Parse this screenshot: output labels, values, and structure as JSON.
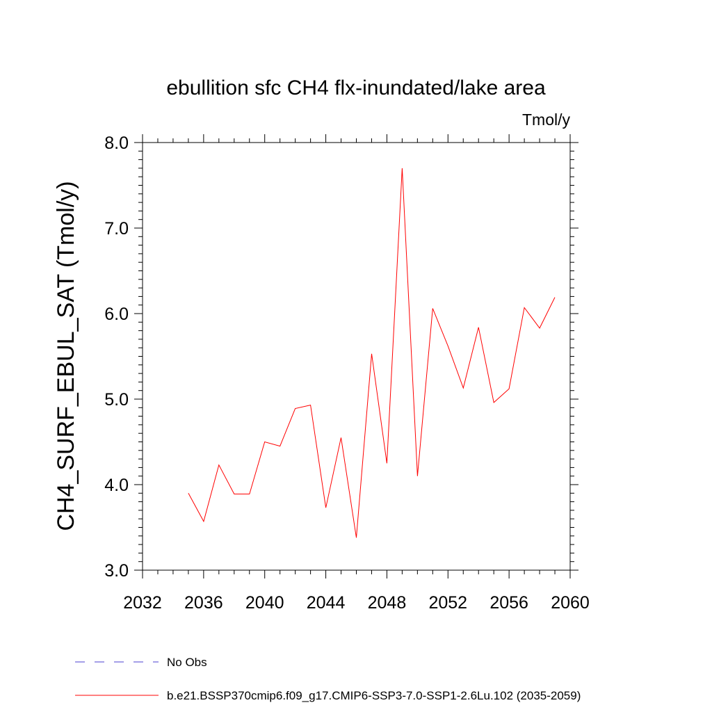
{
  "chart_data": {
    "type": "line",
    "title": "ebullition sfc CH4 flx-inundated/lake area",
    "units": "Tmol/y",
    "ylabel": "CH4_SURF_EBUL_SAT  (Tmol/y)",
    "xlabel": "",
    "xlim": [
      2032,
      2060
    ],
    "ylim": [
      3.0,
      8.0
    ],
    "x_ticks": [
      "2032",
      "2036",
      "2040",
      "2044",
      "2048",
      "2052",
      "2056",
      "2060"
    ],
    "y_ticks": [
      "3.0",
      "4.0",
      "5.0",
      "6.0",
      "7.0",
      "8.0"
    ],
    "series": [
      {
        "name": "b.e21.BSSP370cmip6.f09_g17.CMIP6-SSP3-7.0-SSP1-2.6Lu.102 (2035-2059)",
        "color": "#ff0000",
        "x": [
          2035,
          2036,
          2037,
          2038,
          2039,
          2040,
          2041,
          2042,
          2043,
          2044,
          2045,
          2046,
          2047,
          2048,
          2049,
          2050,
          2051,
          2052,
          2053,
          2054,
          2055,
          2056,
          2057,
          2058,
          2059
        ],
        "y": [
          3.9,
          3.57,
          4.23,
          3.89,
          3.89,
          4.5,
          4.45,
          4.89,
          4.93,
          3.73,
          4.55,
          3.38,
          5.53,
          4.25,
          7.7,
          4.1,
          6.06,
          5.62,
          5.13,
          5.84,
          4.96,
          5.12,
          6.07,
          5.83,
          6.19
        ]
      }
    ],
    "legend": [
      {
        "label": "No Obs",
        "color": "#4a3fd0",
        "style": "dashed"
      },
      {
        "label": "b.e21.BSSP370cmip6.f09_g17.CMIP6-SSP3-7.0-SSP1-2.6Lu.102 (2035-2059)",
        "color": "#ff0000",
        "style": "solid"
      }
    ],
    "legend_position": "bottom",
    "grid": false
  }
}
